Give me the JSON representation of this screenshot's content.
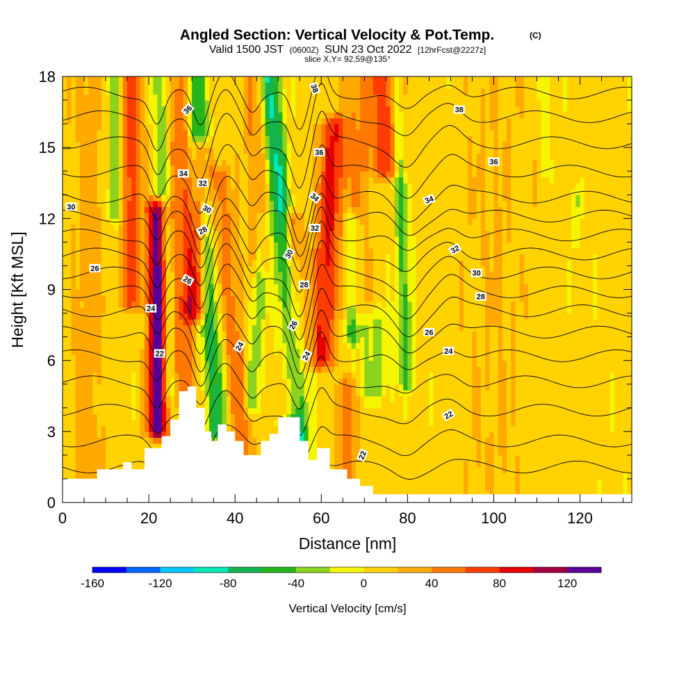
{
  "title": "Angled Section: Vertical Velocity & Pot.Temp.",
  "title_mark": "(C)",
  "subtitle_main": "Valid 1500 JST",
  "subtitle_zulu": "(0600Z)",
  "subtitle_date": "SUN 23 Oct 2022",
  "subtitle_fcst": "[12hrFcst@2227z]",
  "slice_label": "slice X,Y= 92,59@135°",
  "chart_data": {
    "type": "heatmap",
    "xlabel": "Distance [nm]",
    "ylabel": "Height [Kft MSL]",
    "xlim": [
      0,
      132
    ],
    "ylim": [
      0,
      18
    ],
    "xticks": [
      0,
      20,
      40,
      60,
      80,
      100,
      120
    ],
    "yticks": [
      0,
      3,
      6,
      9,
      12,
      15,
      18
    ],
    "colorbar": {
      "label": "Vertical Velocity [cm/s]",
      "min": -160,
      "max": 140,
      "step": 20,
      "tick_values": [
        -160,
        -120,
        -80,
        -40,
        0,
        40,
        80,
        120
      ],
      "colors": [
        "#0000ff",
        "#0064ff",
        "#00c8ff",
        "#00e6b4",
        "#14b450",
        "#28b41e",
        "#8cd21e",
        "#f5f500",
        "#ffd200",
        "#ffaa00",
        "#ff7800",
        "#ff3c00",
        "#e60000",
        "#a00040",
        "#5a0096"
      ]
    },
    "terrain_kft": [
      [
        0,
        1.0
      ],
      [
        4,
        1.0
      ],
      [
        8,
        1.4
      ],
      [
        12,
        1.4
      ],
      [
        14,
        1.7
      ],
      [
        16,
        1.4
      ],
      [
        19,
        2.3
      ],
      [
        23,
        2.8
      ],
      [
        25,
        3.5
      ],
      [
        27,
        4.7
      ],
      [
        29,
        4.9
      ],
      [
        31,
        4.0
      ],
      [
        33,
        3.0
      ],
      [
        34.5,
        2.6
      ],
      [
        36,
        3.3
      ],
      [
        38,
        3.0
      ],
      [
        40,
        2.6
      ],
      [
        42,
        2.0
      ],
      [
        44,
        2.0
      ],
      [
        46,
        2.6
      ],
      [
        48,
        2.9
      ],
      [
        50,
        3.6
      ],
      [
        53,
        3.6
      ],
      [
        55,
        2.6
      ],
      [
        57,
        1.8
      ],
      [
        59,
        2.3
      ],
      [
        61,
        2.3
      ],
      [
        62,
        1.4
      ],
      [
        66,
        1.0
      ],
      [
        69,
        0.7
      ],
      [
        72,
        0.35
      ],
      [
        132,
        0.35
      ]
    ],
    "updrafts": [
      {
        "x": 22,
        "ybot": 3.0,
        "ytop": 12.5,
        "w": 2.2,
        "tilt": 0,
        "peak": 135
      },
      {
        "x": 16,
        "ybot": 8.5,
        "ytop": 18,
        "w": 2.4,
        "tilt": 0,
        "peak": 65
      },
      {
        "x": 31,
        "ybot": 8.0,
        "ytop": 15,
        "w": 2.4,
        "tilt": 0.15,
        "peak": 80
      },
      {
        "x": 28,
        "ybot": 4.5,
        "ytop": 18,
        "w": 2.6,
        "tilt": -0.05,
        "peak": 50
      },
      {
        "x": 42,
        "ybot": 2.0,
        "ytop": 14,
        "w": 2.6,
        "tilt": -0.5,
        "peak": 45
      },
      {
        "x": 60,
        "ybot": 6.0,
        "ytop": 16,
        "w": 3.0,
        "tilt": 0.3,
        "peak": 75
      },
      {
        "x": 53,
        "ybot": 4.0,
        "ytop": 12,
        "w": 2.4,
        "tilt": 0,
        "peak": 55
      },
      {
        "x": 66,
        "ybot": 0.5,
        "ytop": 5.0,
        "w": 2.4,
        "tilt": 0,
        "peak": 45
      },
      {
        "x": 75,
        "ybot": 14,
        "ytop": 18,
        "w": 4.0,
        "tilt": 0,
        "peak": 65
      },
      {
        "x": 46,
        "ybot": 10,
        "ytop": 18,
        "w": 3.0,
        "tilt": -0.2,
        "peak": 35
      },
      {
        "x": 68,
        "ybot": 8,
        "ytop": 18,
        "w": 3.0,
        "tilt": 0,
        "peak": 30
      },
      {
        "x": 6,
        "ybot": 0.5,
        "ytop": 18,
        "w": 4.0,
        "tilt": 0,
        "peak": 22
      },
      {
        "x": 100,
        "ybot": 0.5,
        "ytop": 18,
        "w": 8.0,
        "tilt": 0,
        "peak": 12
      }
    ],
    "downdrafts": [
      {
        "x": 36,
        "ybot": 2.8,
        "ytop": 18,
        "w": 2.4,
        "tilt": -0.35,
        "peak": -70
      },
      {
        "x": 55,
        "ybot": 2.2,
        "ytop": 18,
        "w": 2.4,
        "tilt": -0.45,
        "peak": -95
      },
      {
        "x": 80,
        "ybot": 5.0,
        "ytop": 18,
        "w": 1.6,
        "tilt": -0.2,
        "peak": -55
      },
      {
        "x": 67,
        "ybot": 7.0,
        "ytop": 12,
        "w": 1.8,
        "tilt": 0,
        "peak": -50
      },
      {
        "x": 25,
        "ybot": 4.5,
        "ytop": 18,
        "w": 1.6,
        "tilt": -0.2,
        "peak": -45
      },
      {
        "x": 12,
        "ybot": 12,
        "ytop": 18,
        "w": 1.6,
        "tilt": 0,
        "peak": -45
      },
      {
        "x": 44,
        "ybot": 4,
        "ytop": 12,
        "w": 1.8,
        "tilt": 0.3,
        "peak": -40
      },
      {
        "x": 72,
        "ybot": 4.5,
        "ytop": 8,
        "w": 4.0,
        "tilt": 0,
        "peak": -30
      },
      {
        "x": 119,
        "ybot": 11,
        "ytop": 13,
        "w": 0.8,
        "tilt": 0,
        "peak": -35
      },
      {
        "x": 112,
        "ybot": 14,
        "ytop": 18,
        "w": 0.8,
        "tilt": 0,
        "peak": -25
      }
    ],
    "isentropes_c": [
      {
        "value": 22,
        "base_kft": 1.5
      },
      {
        "value": 23,
        "base_kft": 2.6
      },
      {
        "value": 24,
        "base_kft": 3.9
      },
      {
        "value": 25,
        "base_kft": 5.1
      },
      {
        "value": 26,
        "base_kft": 6.2
      },
      {
        "value": 27,
        "base_kft": 7.2
      },
      {
        "value": 28,
        "base_kft": 8.1
      },
      {
        "value": 29,
        "base_kft": 8.9
      },
      {
        "value": 30,
        "base_kft": 9.7
      },
      {
        "value": 31,
        "base_kft": 10.5
      },
      {
        "value": 32,
        "base_kft": 11.3
      },
      {
        "value": 33,
        "base_kft": 12.1
      },
      {
        "value": 34,
        "base_kft": 12.9
      },
      {
        "value": 35,
        "base_kft": 14.0
      },
      {
        "value": 36,
        "base_kft": 15.2
      },
      {
        "value": 37,
        "base_kft": 16.3
      },
      {
        "value": 38,
        "base_kft": 17.3
      }
    ],
    "contour_labels": [
      {
        "text": "22",
        "x": 22.5,
        "y": 6.3,
        "rot": 0
      },
      {
        "text": "24",
        "x": 20.5,
        "y": 8.2,
        "rot": 0
      },
      {
        "text": "26",
        "x": 7.5,
        "y": 9.9,
        "rot": 0
      },
      {
        "text": "30",
        "x": 2,
        "y": 12.5,
        "rot": 0
      },
      {
        "text": "34",
        "x": 28,
        "y": 13.9,
        "rot": 0
      },
      {
        "text": "32",
        "x": 32.5,
        "y": 13.5,
        "rot": 0
      },
      {
        "text": "30",
        "x": 33.5,
        "y": 12.4,
        "rot": 30
      },
      {
        "text": "28",
        "x": 32.5,
        "y": 11.5,
        "rot": -30
      },
      {
        "text": "26",
        "x": 29,
        "y": 9.4,
        "rot": 30
      },
      {
        "text": "36",
        "x": 29,
        "y": 16.6,
        "rot": -45
      },
      {
        "text": "24",
        "x": 41,
        "y": 6.6,
        "rot": -60
      },
      {
        "text": "30",
        "x": 52.5,
        "y": 10.5,
        "rot": -60
      },
      {
        "text": "26",
        "x": 53.5,
        "y": 7.5,
        "rot": -60
      },
      {
        "text": "24",
        "x": 56.5,
        "y": 6.2,
        "rot": -60
      },
      {
        "text": "28",
        "x": 56,
        "y": 9.2,
        "rot": 0
      },
      {
        "text": "38",
        "x": 58.5,
        "y": 17.5,
        "rot": 70
      },
      {
        "text": "36",
        "x": 59.5,
        "y": 14.8,
        "rot": 0
      },
      {
        "text": "34",
        "x": 58.5,
        "y": 12.9,
        "rot": 40
      },
      {
        "text": "32",
        "x": 58.5,
        "y": 11.6,
        "rot": 0
      },
      {
        "text": "38",
        "x": 92,
        "y": 16.6,
        "rot": 0
      },
      {
        "text": "36",
        "x": 100,
        "y": 14.4,
        "rot": 0
      },
      {
        "text": "34",
        "x": 85,
        "y": 12.8,
        "rot": -20
      },
      {
        "text": "32",
        "x": 91,
        "y": 10.7,
        "rot": -30
      },
      {
        "text": "30",
        "x": 96,
        "y": 9.7,
        "rot": 0
      },
      {
        "text": "28",
        "x": 97,
        "y": 8.7,
        "rot": 0
      },
      {
        "text": "26",
        "x": 85,
        "y": 7.2,
        "rot": 0
      },
      {
        "text": "24",
        "x": 89.5,
        "y": 6.4,
        "rot": 0
      },
      {
        "text": "22",
        "x": 89.5,
        "y": 3.7,
        "rot": -30
      },
      {
        "text": "22",
        "x": 69.5,
        "y": 2.0,
        "rot": -70
      }
    ]
  }
}
